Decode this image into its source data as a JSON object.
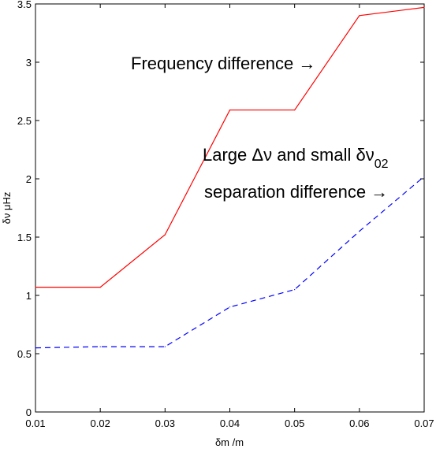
{
  "chart_data": {
    "type": "line",
    "title": "",
    "xlabel": "δm /m",
    "ylabel": "δν μHz",
    "xlim": [
      0.01,
      0.07
    ],
    "ylim": [
      0,
      3.5
    ],
    "grid": false,
    "x_ticks": [
      "0.01",
      "0.02",
      "0.03",
      "0.04",
      "0.05",
      "0.06",
      "0.07"
    ],
    "y_ticks": [
      "0",
      "0.5",
      "1",
      "1.5",
      "2",
      "2.5",
      "3",
      "3.5"
    ],
    "series": [
      {
        "color": "#ff0000",
        "line_style": "solid",
        "x": [
          0.01,
          0.02,
          0.03,
          0.04,
          0.05,
          0.06,
          0.07
        ],
        "y": [
          1.07,
          1.07,
          1.52,
          2.59,
          2.59,
          3.4,
          3.47
        ]
      },
      {
        "color": "#0000ff",
        "line_style": "dashed",
        "x": [
          0.01,
          0.02,
          0.03,
          0.04,
          0.05,
          0.06,
          0.07
        ],
        "y": [
          0.55,
          0.56,
          0.56,
          0.9,
          1.05,
          1.55,
          2.02
        ]
      }
    ],
    "annotations": [
      {
        "text": "Frequency difference →"
      },
      {
        "prefix": "Large Δν and small δν",
        "subscript": "02"
      },
      {
        "text": "separation difference →"
      }
    ]
  }
}
